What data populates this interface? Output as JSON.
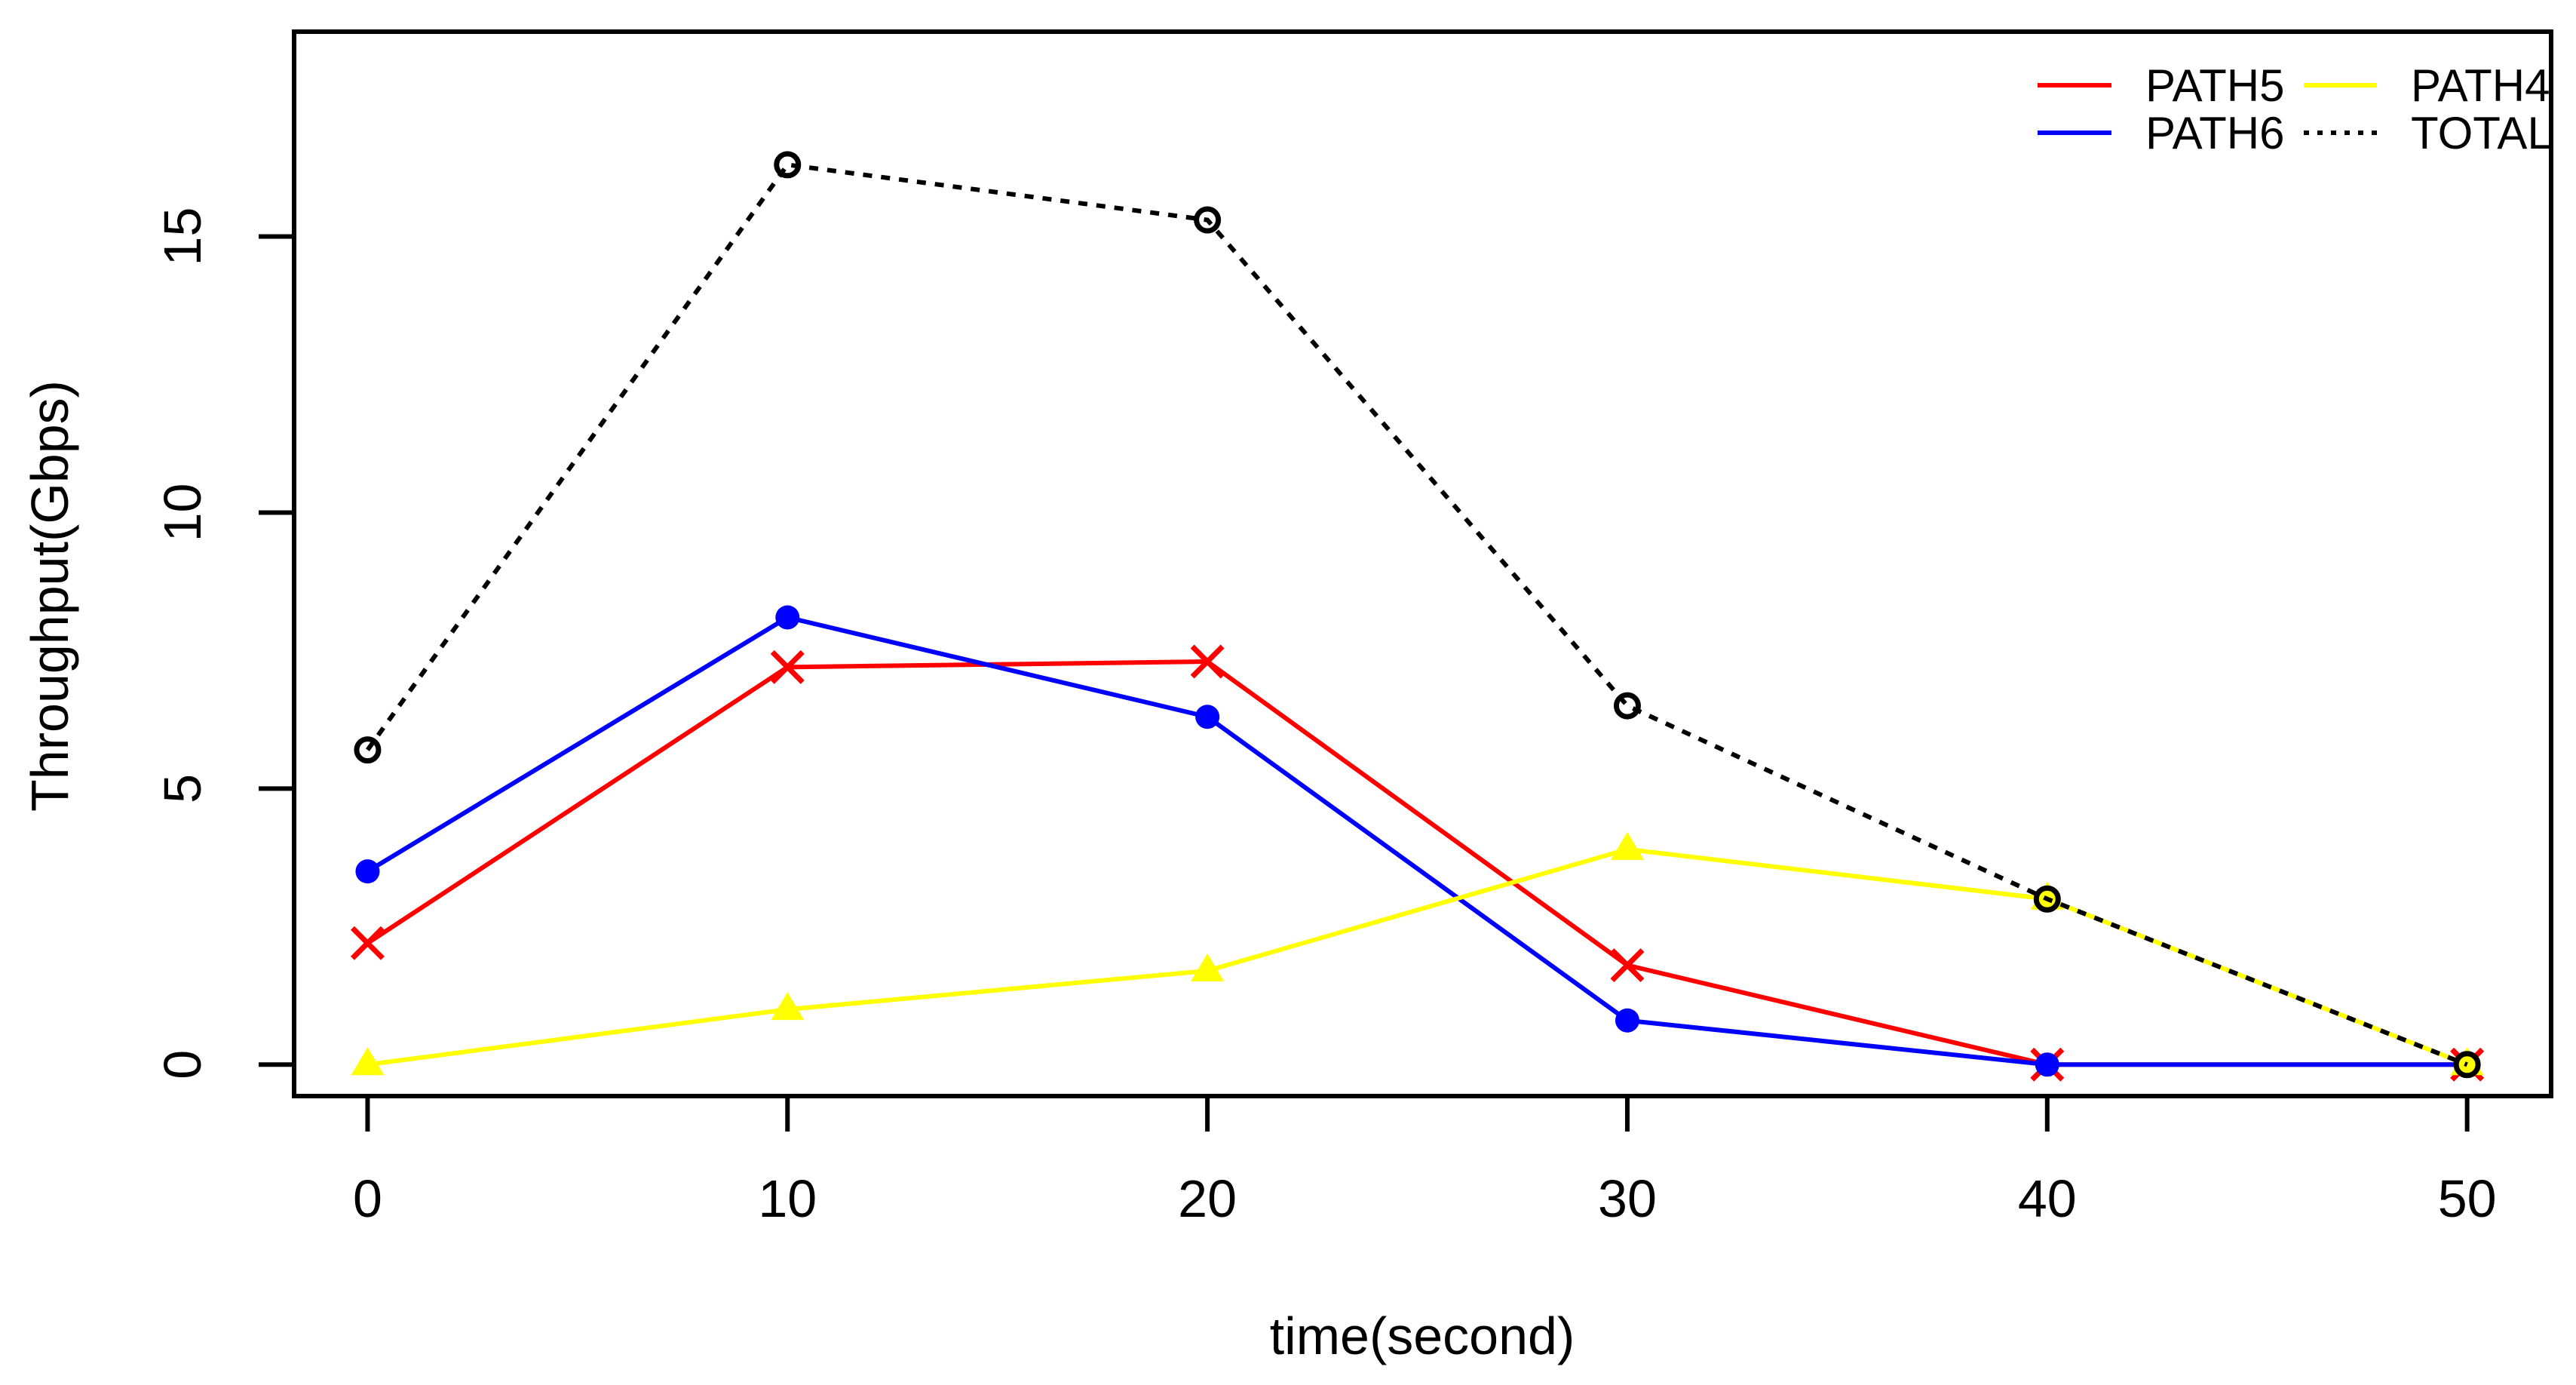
{
  "page": {
    "background_color": "#ffffff"
  },
  "chart_data": {
    "type": "line",
    "title": "",
    "xlabel": "time(second)",
    "ylabel": "Throughput(Gbps)",
    "x": [
      0,
      10,
      20,
      30,
      40,
      50
    ],
    "xtick_labels": [
      "0",
      "10",
      "20",
      "30",
      "40",
      "50"
    ],
    "ytick_values": [
      0,
      5,
      10,
      15
    ],
    "ytick_labels": [
      "0",
      "5",
      "10",
      "15"
    ],
    "xlim": [
      -1.75,
      52
    ],
    "ylim": [
      -0.57,
      18.71
    ],
    "grid": false,
    "plot_frame": true,
    "legend_position": "top-right-inside",
    "legend_columns": [
      [
        "PATH5",
        "PATH6"
      ],
      [
        "PATH4",
        "TOTAL"
      ]
    ],
    "series": [
      {
        "name": "PATH5",
        "color": "#ff0000",
        "line_style": "solid",
        "marker": "x-cross",
        "values": [
          2.2,
          7.2,
          7.3,
          1.8,
          0,
          0
        ]
      },
      {
        "name": "PATH6",
        "color": "#0000ff",
        "line_style": "solid",
        "marker": "filled-circle",
        "values": [
          3.5,
          8.1,
          6.3,
          0.8,
          0,
          0
        ]
      },
      {
        "name": "PATH4",
        "color": "#ffff00",
        "line_style": "solid",
        "marker": "filled-triangle",
        "values": [
          0,
          1.0,
          1.7,
          3.9,
          3.0,
          0
        ]
      },
      {
        "name": "TOTAL",
        "color": "#000000",
        "line_style": "dotted",
        "marker": "open-circle",
        "values": [
          5.7,
          16.3,
          15.3,
          6.5,
          3.0,
          0
        ]
      }
    ],
    "axis_color": "#000000"
  }
}
